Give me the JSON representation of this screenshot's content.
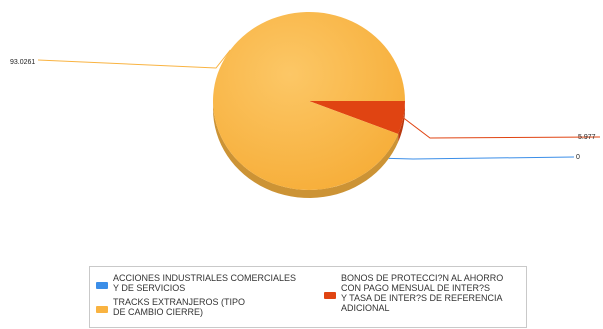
{
  "chart_data": {
    "type": "pie",
    "series": [
      {
        "name": "ACCIONES INDUSTRIALES COMERCIALES\nY DE SERVICIOS",
        "value": 0,
        "label": "0",
        "color": "#3b8ee8"
      },
      {
        "name": "TRACKS EXTRANJEROS (TIPO\nDE CAMBIO CIERRE)",
        "value": 93.0261,
        "label": "93.0261",
        "color": "#f9b341"
      },
      {
        "name": "BONOS DE PROTECCI?N AL AHORRO\nCON PAGO MENSUAL DE INTER?S\nY TASA DE INTER?S DE REFERENCIA\nADICIONAL",
        "value": 5.9774,
        "label": "5.977",
        "color": "#e04412"
      }
    ],
    "legend_position": "bottom",
    "style": "3d"
  }
}
